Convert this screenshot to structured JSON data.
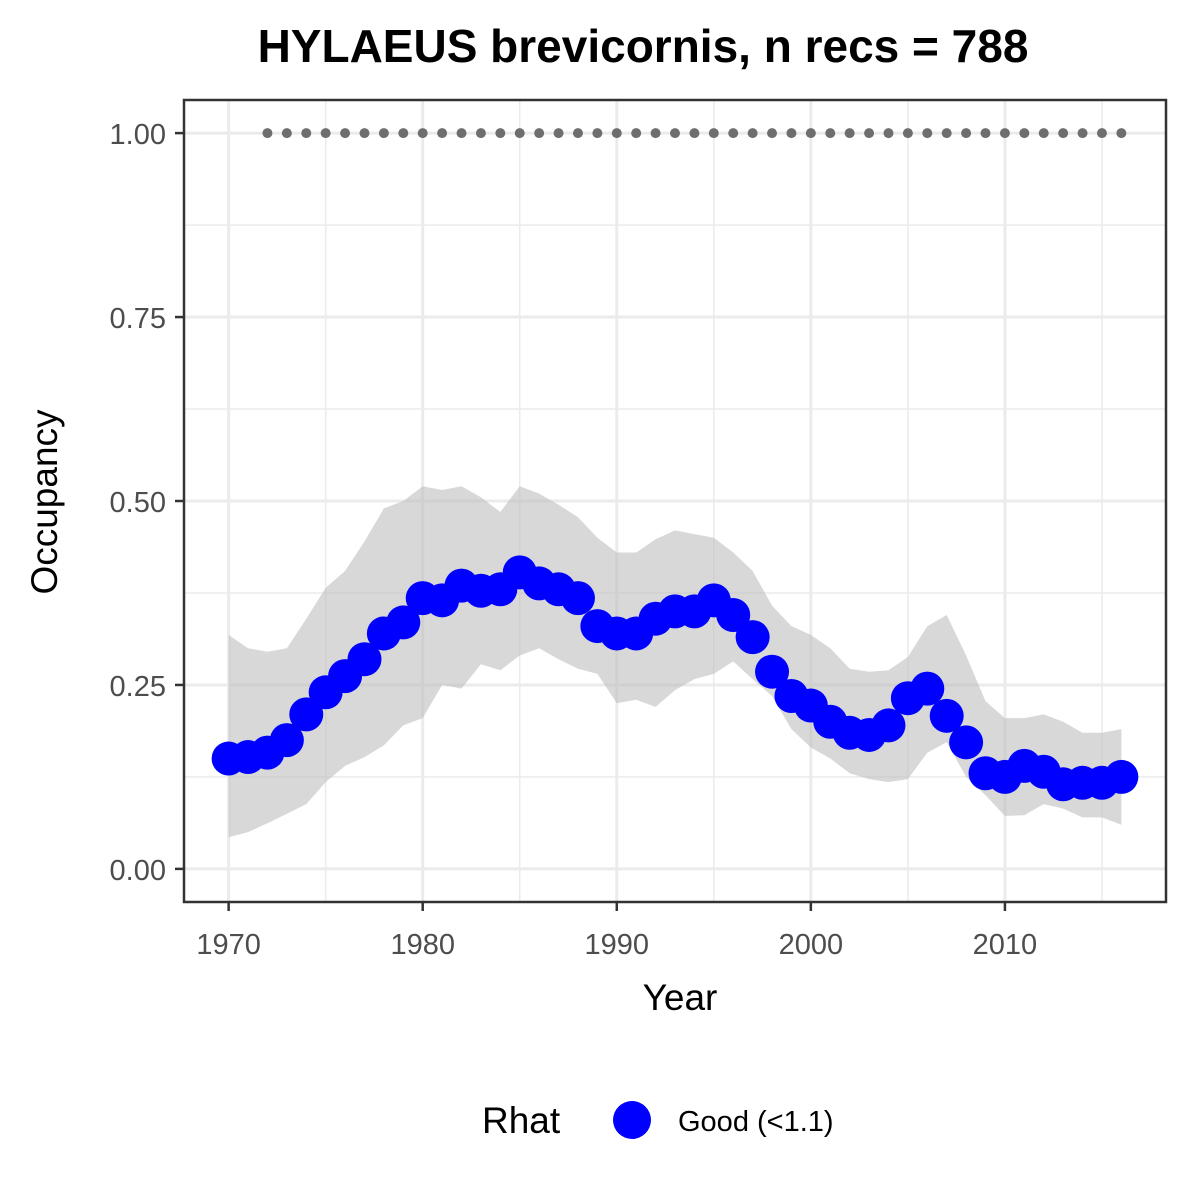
{
  "chart_data": {
    "type": "line",
    "title": "HYLAEUS brevicornis, n recs = 788",
    "xlabel": "Year",
    "ylabel": "Occupancy",
    "xlim": [
      1967.7,
      2018.3
    ],
    "ylim": [
      -0.045,
      1.045
    ],
    "x_ticks": [
      1970,
      1980,
      1990,
      2000,
      2010
    ],
    "x_tick_labels": [
      "1970",
      "1980",
      "1990",
      "2000",
      "2010"
    ],
    "x_minor_ticks": [
      1975,
      1985,
      1995,
      2005,
      2015
    ],
    "y_ticks": [
      0,
      0.25,
      0.5,
      0.75,
      1.0
    ],
    "y_tick_labels": [
      "0.00",
      "0.25",
      "0.50",
      "0.75",
      "1.00"
    ],
    "y_minor_ticks": [
      0.125,
      0.375,
      0.625,
      0.875
    ],
    "grid": true,
    "legend": {
      "title": "Rhat",
      "position": "bottom",
      "items": [
        {
          "label": "Good (<1.1)",
          "color": "#0000ff"
        }
      ]
    },
    "colors": {
      "points": "#0000ff",
      "ribbon": "#bebebe",
      "dotted_line": "#6e6e6e",
      "grid": "#ebebeb",
      "panel_border": "#333333"
    },
    "x": [
      1970,
      1971,
      1972,
      1973,
      1974,
      1975,
      1976,
      1977,
      1978,
      1979,
      1980,
      1981,
      1982,
      1983,
      1984,
      1985,
      1986,
      1987,
      1988,
      1989,
      1990,
      1991,
      1992,
      1993,
      1994,
      1995,
      1996,
      1997,
      1998,
      1999,
      2000,
      2001,
      2002,
      2003,
      2004,
      2005,
      2006,
      2007,
      2008,
      2009,
      2010,
      2011,
      2012,
      2013,
      2014,
      2015,
      2016
    ],
    "series": [
      {
        "type": "points",
        "values": [
          0.15,
          0.152,
          0.158,
          0.175,
          0.21,
          0.24,
          0.262,
          0.285,
          0.32,
          0.335,
          0.368,
          0.365,
          0.385,
          0.378,
          0.38,
          0.403,
          0.388,
          0.38,
          0.368,
          0.33,
          0.32,
          0.32,
          0.34,
          0.35,
          0.35,
          0.365,
          0.345,
          0.315,
          0.268,
          0.235,
          0.222,
          0.2,
          0.185,
          0.182,
          0.195,
          0.232,
          0.245,
          0.208,
          0.172,
          0.13,
          0.125,
          0.14,
          0.132,
          0.115,
          0.117,
          0.117,
          0.125
        ]
      },
      {
        "type": "ribbon",
        "lower": [
          0.043,
          0.05,
          0.062,
          0.075,
          0.088,
          0.118,
          0.14,
          0.152,
          0.168,
          0.195,
          0.205,
          0.25,
          0.245,
          0.278,
          0.27,
          0.29,
          0.3,
          0.285,
          0.272,
          0.265,
          0.225,
          0.23,
          0.22,
          0.243,
          0.258,
          0.265,
          0.282,
          0.258,
          0.235,
          0.19,
          0.165,
          0.15,
          0.13,
          0.122,
          0.118,
          0.122,
          0.158,
          0.172,
          0.125,
          0.1,
          0.072,
          0.073,
          0.088,
          0.082,
          0.07,
          0.07,
          0.06
        ],
        "upper": [
          0.318,
          0.3,
          0.295,
          0.3,
          0.34,
          0.382,
          0.405,
          0.445,
          0.49,
          0.5,
          0.52,
          0.515,
          0.52,
          0.505,
          0.485,
          0.52,
          0.51,
          0.495,
          0.478,
          0.45,
          0.43,
          0.43,
          0.448,
          0.46,
          0.455,
          0.45,
          0.43,
          0.405,
          0.358,
          0.33,
          0.318,
          0.3,
          0.272,
          0.268,
          0.27,
          0.288,
          0.33,
          0.345,
          0.29,
          0.228,
          0.205,
          0.205,
          0.21,
          0.2,
          0.185,
          0.185,
          0.19
        ]
      },
      {
        "type": "dotted",
        "x_start": 1972,
        "x_end": 2016,
        "value": 1.0
      }
    ]
  }
}
